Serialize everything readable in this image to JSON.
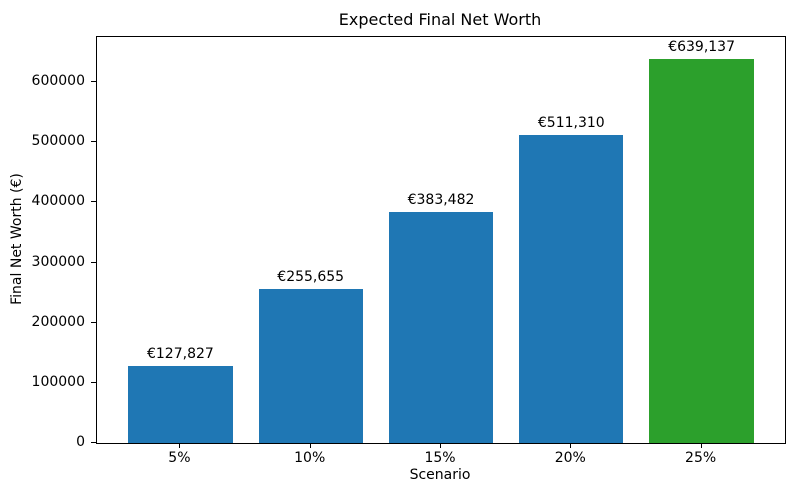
{
  "chart_data": {
    "type": "bar",
    "title": "Expected Final Net Worth",
    "xlabel": "Scenario",
    "ylabel": "Final Net Worth (€)",
    "categories": [
      "5%",
      "10%",
      "15%",
      "20%",
      "25%"
    ],
    "values": [
      127827,
      255655,
      383482,
      511310,
      639137
    ],
    "bar_labels": [
      "€127,827",
      "€255,655",
      "€383,482",
      "€511,310",
      "€639,137"
    ],
    "bar_colors": [
      "#1f77b4",
      "#1f77b4",
      "#1f77b4",
      "#1f77b4",
      "#2ca02c"
    ],
    "yticks": [
      0,
      100000,
      200000,
      300000,
      400000,
      500000,
      600000
    ],
    "ylim": [
      0,
      675000
    ],
    "grid": false,
    "legend": "none",
    "colors": {
      "bar_blue": "#1f77b4",
      "bar_green": "#2ca02c",
      "axis": "#000000",
      "background": "#ffffff"
    }
  }
}
